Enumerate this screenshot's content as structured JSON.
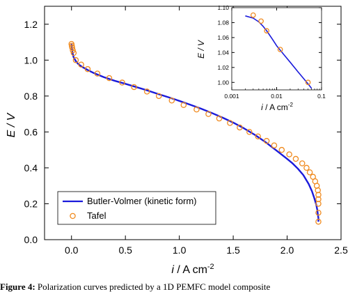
{
  "chart_data": [
    {
      "type": "line",
      "x_label_var": "i",
      "x_label_unit": " / A cm",
      "x_label_exp": "-2",
      "y_label": "E / V",
      "xlim": [
        -0.25,
        2.5
      ],
      "ylim": [
        0.0,
        1.3
      ],
      "x_ticks": [
        0.0,
        0.5,
        1.0,
        1.5,
        2.0,
        2.5
      ],
      "y_ticks": [
        0.0,
        0.2,
        0.4,
        0.6,
        0.8,
        1.0,
        1.2
      ],
      "x_tick_labels": [
        "0.0",
        "0.5",
        "1.0",
        "1.5",
        "2.0",
        "2.5"
      ],
      "y_tick_labels": [
        "0.0",
        "0.2",
        "0.4",
        "0.6",
        "0.8",
        "1.0",
        "1.2"
      ],
      "legend_position": "bottom-left",
      "series": [
        {
          "name": "Butler-Volmer (kinetic form)",
          "style": "line",
          "color": "#1a1adb",
          "x": [
            0.0,
            0.002,
            0.005,
            0.01,
            0.02,
            0.04,
            0.06,
            0.08,
            0.1,
            0.15,
            0.2,
            0.3,
            0.4,
            0.5,
            0.6,
            0.7,
            0.8,
            0.9,
            1.0,
            1.1,
            1.2,
            1.3,
            1.4,
            1.5,
            1.6,
            1.7,
            1.8,
            1.9,
            2.0,
            2.05,
            2.1,
            2.15,
            2.2,
            2.23,
            2.25,
            2.27,
            2.28,
            2.285,
            2.29,
            2.29
          ],
          "y": [
            1.09,
            1.075,
            1.06,
            1.04,
            1.015,
            0.995,
            0.98,
            0.97,
            0.962,
            0.945,
            0.93,
            0.905,
            0.885,
            0.868,
            0.85,
            0.832,
            0.812,
            0.793,
            0.773,
            0.752,
            0.73,
            0.706,
            0.68,
            0.652,
            0.62,
            0.584,
            0.543,
            0.497,
            0.45,
            0.425,
            0.395,
            0.36,
            0.31,
            0.27,
            0.235,
            0.195,
            0.165,
            0.14,
            0.12,
            0.1
          ]
        },
        {
          "name": "Tafel",
          "style": "markers",
          "color": "#f08a1e",
          "x": [
            0.0,
            0.003,
            0.006,
            0.012,
            0.02,
            0.04,
            0.09,
            0.15,
            0.24,
            0.35,
            0.47,
            0.58,
            0.7,
            0.81,
            0.93,
            1.04,
            1.16,
            1.27,
            1.37,
            1.47,
            1.56,
            1.65,
            1.73,
            1.81,
            1.88,
            1.95,
            2.02,
            2.08,
            2.14,
            2.18,
            2.21,
            2.24,
            2.26,
            2.275,
            2.285,
            2.29,
            2.29,
            2.29,
            2.29,
            2.29
          ],
          "y": [
            1.09,
            1.08,
            1.07,
            1.055,
            1.04,
            1.0,
            0.975,
            0.95,
            0.925,
            0.9,
            0.875,
            0.85,
            0.825,
            0.8,
            0.775,
            0.75,
            0.725,
            0.7,
            0.675,
            0.65,
            0.625,
            0.6,
            0.575,
            0.55,
            0.525,
            0.5,
            0.475,
            0.45,
            0.425,
            0.4,
            0.375,
            0.35,
            0.325,
            0.3,
            0.275,
            0.25,
            0.225,
            0.2,
            0.15,
            0.1
          ]
        }
      ]
    },
    {
      "type": "line",
      "x_scale": "log",
      "x_label_var": "i",
      "x_label_unit": " / A cm",
      "x_label_exp": "-2",
      "y_label": "E / V",
      "xlim": [
        0.001,
        0.1
      ],
      "ylim": [
        0.99,
        1.1
      ],
      "x_ticks": [
        0.001,
        0.01,
        0.1
      ],
      "y_ticks": [
        1.0,
        1.02,
        1.04,
        1.06,
        1.08,
        1.1
      ],
      "x_tick_labels": [
        "0.001",
        "0.01",
        "0.1"
      ],
      "y_tick_labels": [
        "1.00",
        "1.02",
        "1.04",
        "1.06",
        "1.08",
        "1.10"
      ],
      "series": [
        {
          "name": "Butler-Volmer (kinetic form)",
          "style": "line",
          "color": "#1a1adb",
          "x": [
            0.002,
            0.003,
            0.004,
            0.005,
            0.006,
            0.008,
            0.01,
            0.015,
            0.02,
            0.03,
            0.04,
            0.05,
            0.06
          ],
          "y": [
            1.089,
            1.086,
            1.081,
            1.075,
            1.069,
            1.058,
            1.049,
            1.036,
            1.027,
            1.014,
            1.005,
            0.998,
            0.992
          ]
        },
        {
          "name": "Tafel",
          "style": "markers",
          "color": "#f08a1e",
          "x": [
            0.003,
            0.0045,
            0.006,
            0.012,
            0.05
          ],
          "y": [
            1.09,
            1.082,
            1.069,
            1.044,
            1.0
          ]
        }
      ]
    }
  ],
  "caption": {
    "label": "Figure 4:",
    "text": " Polarization curves predicted by a 1D PEMFC model composite"
  }
}
